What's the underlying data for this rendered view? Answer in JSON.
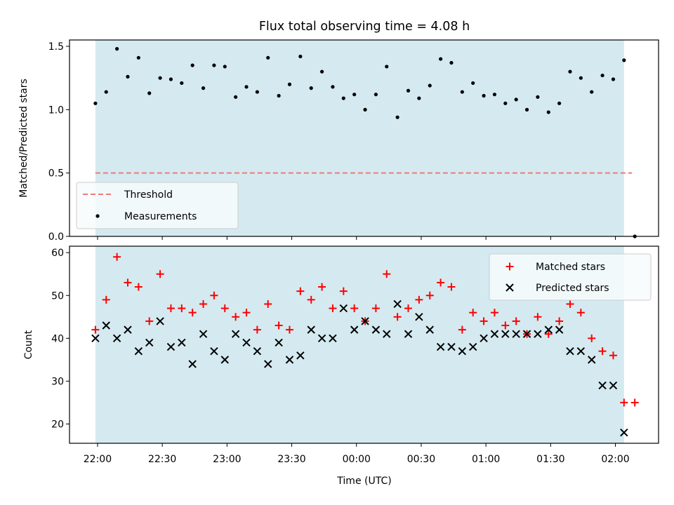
{
  "title": "Flux total observing time = 4.08 h",
  "colors": {
    "observing_span": "#d4eaf0",
    "threshold": "#f07878",
    "measurements": "#000000",
    "matched": "#ff0000",
    "predicted": "#000000"
  },
  "chart_data": [
    {
      "type": "scatter",
      "title": "Flux total observing time = 4.08 h",
      "xlabel": "",
      "ylabel": "Matched/Predicted stars",
      "ylim": [
        0,
        1.55
      ],
      "yticks": [
        "0.0",
        "0.5",
        "1.0",
        "1.5"
      ],
      "x_unit": "minutes after 22:00 UTC",
      "xlim": [
        -13,
        260
      ],
      "observing_span": [
        -1,
        244
      ],
      "legend_position": "lower-left",
      "threshold": {
        "name": "Threshold",
        "value": 0.5
      },
      "series": [
        {
          "name": "Measurements",
          "x": [
            -1,
            4,
            9,
            14,
            19,
            24,
            29,
            34,
            39,
            44,
            49,
            54,
            59,
            64,
            69,
            74,
            79,
            84,
            89,
            94,
            99,
            104,
            109,
            114,
            119,
            124,
            129,
            134,
            139,
            144,
            149,
            154,
            159,
            164,
            169,
            174,
            179,
            184,
            189,
            194,
            199,
            204,
            209,
            214,
            219,
            224,
            229,
            234,
            239,
            244,
            249
          ],
          "y": [
            1.05,
            1.14,
            1.48,
            1.26,
            1.41,
            1.13,
            1.25,
            1.24,
            1.21,
            1.35,
            1.17,
            1.35,
            1.34,
            1.1,
            1.18,
            1.14,
            1.41,
            1.11,
            1.2,
            1.42,
            1.17,
            1.3,
            1.18,
            1.09,
            1.12,
            1.0,
            1.12,
            1.34,
            0.94,
            1.15,
            1.09,
            1.19,
            1.4,
            1.37,
            1.14,
            1.21,
            1.11,
            1.12,
            1.05,
            1.08,
            1.0,
            1.1,
            0.98,
            1.05,
            1.3,
            1.25,
            1.14,
            1.27,
            1.24,
            1.39,
            0.0
          ]
        }
      ]
    },
    {
      "type": "scatter",
      "xlabel": "Time (UTC)",
      "ylabel": "Count",
      "ylim": [
        15.5,
        61.5
      ],
      "yticks": [
        "20",
        "30",
        "40",
        "50",
        "60"
      ],
      "xticks": [
        "22:00",
        "22:30",
        "23:00",
        "23:30",
        "00:00",
        "00:30",
        "01:00",
        "01:30",
        "02:00"
      ],
      "x_unit": "minutes after 22:00 UTC",
      "xlim": [
        -13,
        260
      ],
      "observing_span": [
        -1,
        244
      ],
      "legend_position": "upper-right",
      "series": [
        {
          "name": "Matched stars",
          "x": [
            -1,
            4,
            9,
            14,
            19,
            24,
            29,
            34,
            39,
            44,
            49,
            54,
            59,
            64,
            69,
            74,
            79,
            84,
            89,
            94,
            99,
            104,
            109,
            114,
            119,
            124,
            129,
            134,
            139,
            144,
            149,
            154,
            159,
            164,
            169,
            174,
            179,
            184,
            189,
            194,
            199,
            204,
            209,
            214,
            219,
            224,
            229,
            234,
            239,
            244,
            249
          ],
          "y": [
            42,
            49,
            59,
            53,
            52,
            44,
            55,
            47,
            47,
            46,
            48,
            50,
            47,
            45,
            46,
            42,
            48,
            43,
            42,
            51,
            49,
            52,
            47,
            51,
            47,
            44,
            47,
            55,
            45,
            47,
            49,
            50,
            53,
            52,
            42,
            46,
            44,
            46,
            43,
            44,
            41,
            45,
            41,
            44,
            48,
            46,
            40,
            37,
            36,
            25,
            25
          ]
        },
        {
          "name": "Predicted stars",
          "x": [
            -1,
            4,
            9,
            14,
            19,
            24,
            29,
            34,
            39,
            44,
            49,
            54,
            59,
            64,
            69,
            74,
            79,
            84,
            89,
            94,
            99,
            104,
            109,
            114,
            119,
            124,
            129,
            134,
            139,
            144,
            149,
            154,
            159,
            164,
            169,
            174,
            179,
            184,
            189,
            194,
            199,
            204,
            209,
            214,
            219,
            224,
            229,
            234,
            239,
            244
          ],
          "y": [
            40,
            43,
            40,
            42,
            37,
            39,
            44,
            38,
            39,
            34,
            41,
            37,
            35,
            41,
            39,
            37,
            34,
            39,
            35,
            36,
            42,
            40,
            40,
            47,
            42,
            44,
            42,
            41,
            48,
            41,
            45,
            42,
            38,
            38,
            37,
            38,
            40,
            41,
            41,
            41,
            41,
            41,
            42,
            42,
            37,
            37,
            35,
            29,
            29,
            18
          ]
        }
      ]
    }
  ]
}
